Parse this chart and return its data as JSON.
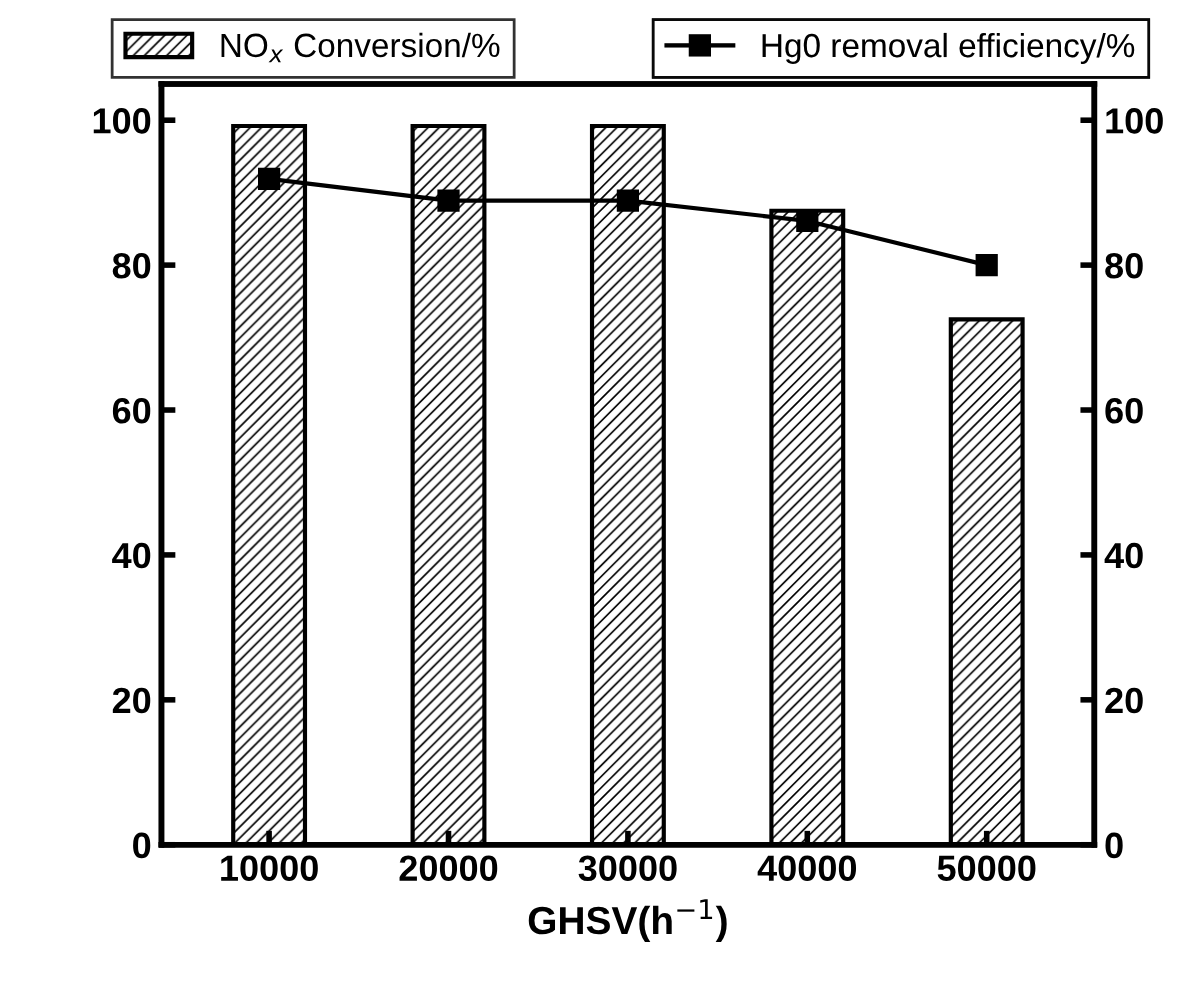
{
  "chart_data": {
    "type": "bar",
    "categories": [
      "10000",
      "20000",
      "30000",
      "40000",
      "50000"
    ],
    "xlabel": "GHSV(h$^{−1}$)",
    "ylim": [
      0,
      105
    ],
    "yticks": [
      0,
      20,
      40,
      60,
      80,
      100
    ],
    "y2lim": [
      0,
      105
    ],
    "y2ticks": [
      0,
      20,
      40,
      60,
      80,
      100
    ],
    "legend": "top",
    "grid": false,
    "series": [
      {
        "name": "NO$_{x}$ Conversion/%",
        "color": "#000000",
        "values": [
          99.2,
          99.2,
          99.2,
          87.5,
          72.5
        ]
      },
      {
        "name": "Hg0 removal efficiency/%",
        "type": "line",
        "marker": "square",
        "line_style": "solid",
        "color": "#000000",
        "values": [
          91.9,
          88.9,
          88.9,
          86.1,
          80.0
        ]
      }
    ]
  }
}
